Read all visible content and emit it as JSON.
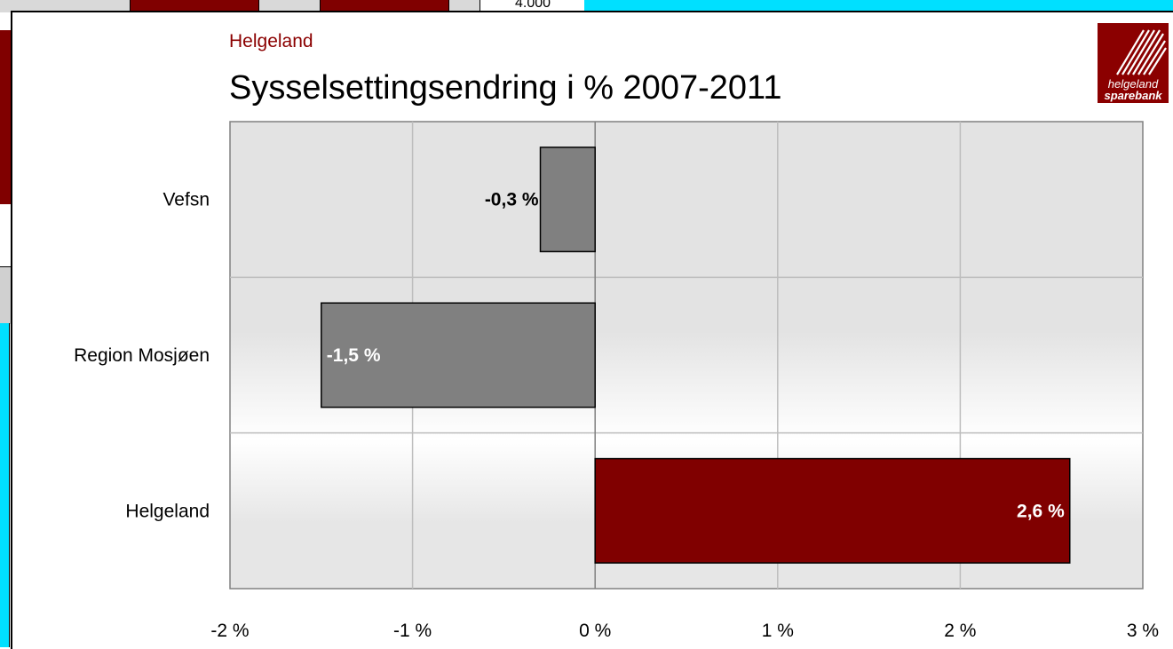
{
  "background": {
    "cell_text": "4.000"
  },
  "header": {
    "region": "Helgeland",
    "title": "Sysselsettingsendring i % 2007-2011"
  },
  "logo": {
    "line1": "helgeland",
    "line2": "sparebank"
  },
  "colors": {
    "accent": "#800000",
    "neutral_bar": "#808080",
    "plot_bg": "#e4e4e4",
    "grid": "#bdbdbd",
    "cyan": "#00e0ff"
  },
  "chart_data": {
    "type": "bar",
    "orientation": "horizontal",
    "title": "Sysselsettingsendring i % 2007-2011",
    "categories": [
      "Vefsn",
      "Region Mosjøen",
      "Helgeland"
    ],
    "values": [
      -0.3,
      -1.5,
      2.6
    ],
    "data_labels": [
      "-0,3 %",
      "-1,5 %",
      "2,6 %"
    ],
    "xlim": [
      -2,
      3
    ],
    "x_ticks": [
      -2,
      -1,
      0,
      1,
      2,
      3
    ],
    "x_tick_labels": [
      "-2 %",
      "-1 %",
      "0 %",
      "1 %",
      "2 %",
      "3 %"
    ],
    "grid": true,
    "bar_colors": [
      "#808080",
      "#808080",
      "#800000"
    ]
  }
}
